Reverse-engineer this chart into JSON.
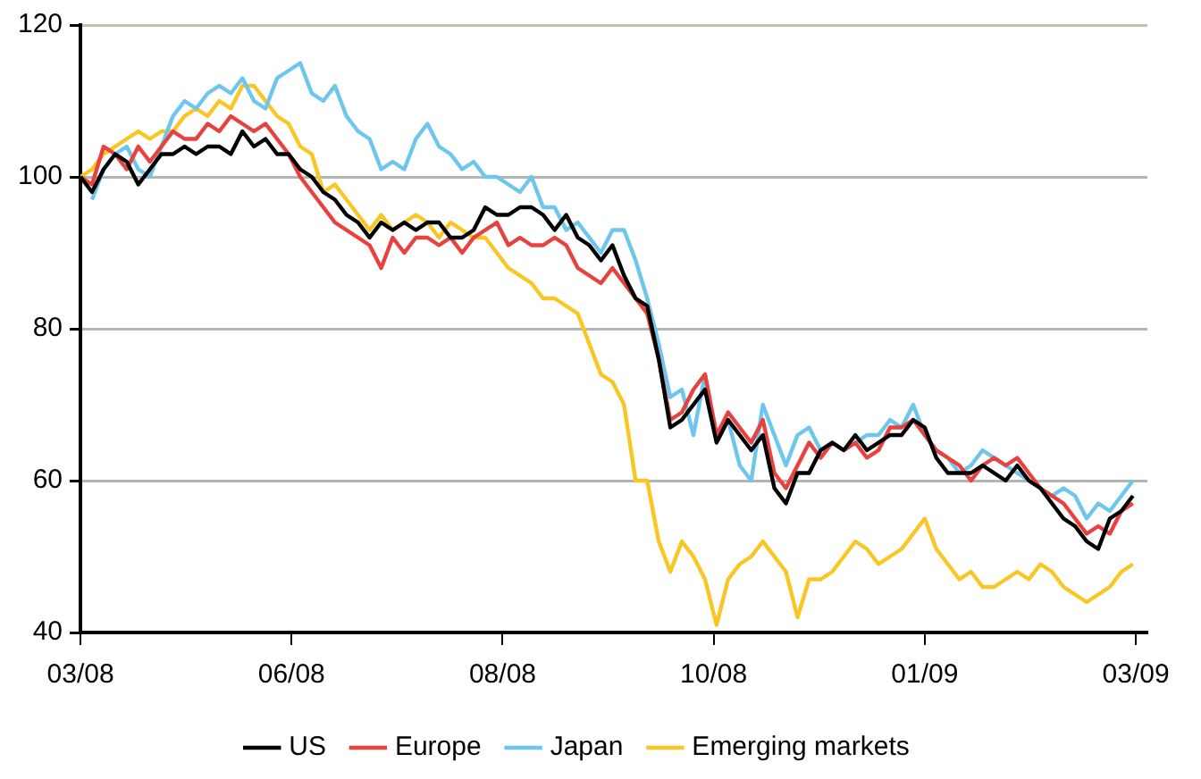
{
  "chart_data": {
    "type": "line",
    "x": [
      "2008-03-20",
      "2008-03-24",
      "2008-03-28",
      "2008-04-01",
      "2008-04-05",
      "2008-04-09",
      "2008-04-13",
      "2008-04-17",
      "2008-04-21",
      "2008-04-25",
      "2008-04-29",
      "2008-05-03",
      "2008-05-07",
      "2008-05-11",
      "2008-05-15",
      "2008-05-19",
      "2008-05-23",
      "2008-05-27",
      "2008-05-31",
      "2008-06-04",
      "2008-06-08",
      "2008-06-12",
      "2008-06-16",
      "2008-06-20",
      "2008-06-24",
      "2008-06-28",
      "2008-07-02",
      "2008-07-06",
      "2008-07-10",
      "2008-07-14",
      "2008-07-18",
      "2008-07-22",
      "2008-07-26",
      "2008-07-30",
      "2008-08-03",
      "2008-08-07",
      "2008-08-11",
      "2008-08-15",
      "2008-08-19",
      "2008-08-23",
      "2008-08-27",
      "2008-08-31",
      "2008-09-04",
      "2008-09-08",
      "2008-09-12",
      "2008-09-16",
      "2008-09-20",
      "2008-09-24",
      "2008-09-28",
      "2008-10-02",
      "2008-10-06",
      "2008-10-10",
      "2008-10-14",
      "2008-10-18",
      "2008-10-22",
      "2008-10-26",
      "2008-10-30",
      "2008-11-03",
      "2008-11-07",
      "2008-11-11",
      "2008-11-15",
      "2008-11-19",
      "2008-11-23",
      "2008-11-27",
      "2008-12-01",
      "2008-12-05",
      "2008-12-09",
      "2008-12-13",
      "2008-12-17",
      "2008-12-21",
      "2008-12-25",
      "2008-12-29",
      "2009-01-02",
      "2009-01-06",
      "2009-01-10",
      "2009-01-14",
      "2009-01-18",
      "2009-01-22",
      "2009-01-26",
      "2009-01-30",
      "2009-02-03",
      "2009-02-07",
      "2009-02-11",
      "2009-02-15",
      "2009-02-19",
      "2009-02-23",
      "2009-02-27",
      "2009-03-03",
      "2009-03-07",
      "2009-03-11",
      "2009-03-15",
      "2009-03-19"
    ],
    "xlim": [
      "2008-03-20",
      "2009-03-24"
    ],
    "xticks": [
      {
        "value": "2008-03-20",
        "label": "03/08"
      },
      {
        "value": "2008-06-01",
        "label": "06/08"
      },
      {
        "value": "2008-08-13",
        "label": "08/08"
      },
      {
        "value": "2008-10-25",
        "label": "10/08"
      },
      {
        "value": "2009-01-06",
        "label": "01/09"
      },
      {
        "value": "2009-03-20",
        "label": "03/09"
      }
    ],
    "ylim": [
      40,
      120
    ],
    "yticks": [
      40,
      60,
      80,
      100,
      120
    ],
    "grid": "y",
    "legend": "bottom",
    "marker": "none",
    "line_style": "solid",
    "series": [
      {
        "name": "US",
        "color": "#000000",
        "values": [
          100,
          98,
          101,
          103,
          102,
          99,
          101,
          103,
          103,
          104,
          103,
          104,
          104,
          103,
          106,
          104,
          105,
          103,
          103,
          101,
          100,
          98,
          97,
          95,
          94,
          92,
          94,
          93,
          94,
          93,
          94,
          94,
          92,
          92,
          93,
          96,
          95,
          95,
          96,
          96,
          95,
          93,
          95,
          92,
          91,
          89,
          91,
          87,
          84,
          83,
          76,
          67,
          68,
          70,
          72,
          65,
          68,
          66,
          64,
          66,
          59,
          57,
          61,
          61,
          64,
          65,
          64,
          66,
          64,
          65,
          66,
          66,
          68,
          67,
          63,
          61,
          61,
          61,
          62,
          61,
          60,
          62,
          60,
          59,
          57,
          55,
          54,
          52,
          51,
          55,
          56,
          58
        ]
      },
      {
        "name": "Europe",
        "color": "#e8423f",
        "values": [
          100,
          99,
          104,
          103,
          101,
          104,
          102,
          104,
          106,
          105,
          105,
          107,
          106,
          108,
          107,
          106,
          107,
          105,
          103,
          100,
          98,
          96,
          94,
          93,
          92,
          91,
          88,
          92,
          90,
          92,
          92,
          91,
          92,
          90,
          92,
          93,
          94,
          91,
          92,
          91,
          91,
          92,
          91,
          88,
          87,
          86,
          88,
          86,
          84,
          82,
          76,
          68,
          69,
          72,
          74,
          66,
          69,
          67,
          65,
          68,
          61,
          59,
          62,
          65,
          63,
          65,
          64,
          65,
          63,
          64,
          67,
          67,
          68,
          66,
          64,
          63,
          62,
          60,
          62,
          63,
          62,
          63,
          61,
          59,
          58,
          57,
          55,
          53,
          54,
          53,
          56,
          57
        ]
      },
      {
        "name": "Japan",
        "color": "#6ec6ee",
        "values": [
          null,
          97,
          101,
          103,
          104,
          101,
          100,
          104,
          108,
          110,
          109,
          111,
          112,
          111,
          113,
          110,
          109,
          113,
          114,
          115,
          111,
          110,
          112,
          108,
          106,
          105,
          101,
          102,
          101,
          105,
          107,
          104,
          103,
          101,
          102,
          100,
          100,
          99,
          98,
          100,
          96,
          96,
          93,
          94,
          92,
          90,
          93,
          93,
          89,
          84,
          78,
          71,
          72,
          66,
          74,
          66,
          68,
          62,
          60,
          70,
          66,
          62,
          66,
          67,
          64,
          65,
          64,
          65,
          66,
          66,
          68,
          67,
          70,
          66,
          64,
          63,
          61,
          62,
          64,
          63,
          62,
          61,
          60,
          59,
          58,
          59,
          58,
          55,
          57,
          56,
          58,
          60
        ]
      },
      {
        "name": "Emerging markets",
        "color": "#f9c623",
        "values": [
          100,
          101,
          103,
          104,
          105,
          106,
          105,
          106,
          106,
          108,
          109,
          108,
          110,
          109,
          112,
          112,
          110,
          108,
          107,
          104,
          103,
          98,
          99,
          97,
          95,
          93,
          95,
          93,
          94,
          95,
          94,
          92,
          94,
          93,
          92,
          92,
          90,
          88,
          87,
          86,
          84,
          84,
          83,
          82,
          78,
          74,
          73,
          70,
          60,
          60,
          52,
          48,
          52,
          50,
          47,
          41,
          47,
          49,
          50,
          52,
          50,
          48,
          42,
          47,
          47,
          48,
          50,
          52,
          51,
          49,
          50,
          51,
          53,
          55,
          51,
          49,
          47,
          48,
          46,
          46,
          47,
          48,
          47,
          49,
          48,
          46,
          45,
          44,
          45,
          46,
          48,
          49
        ]
      }
    ]
  }
}
